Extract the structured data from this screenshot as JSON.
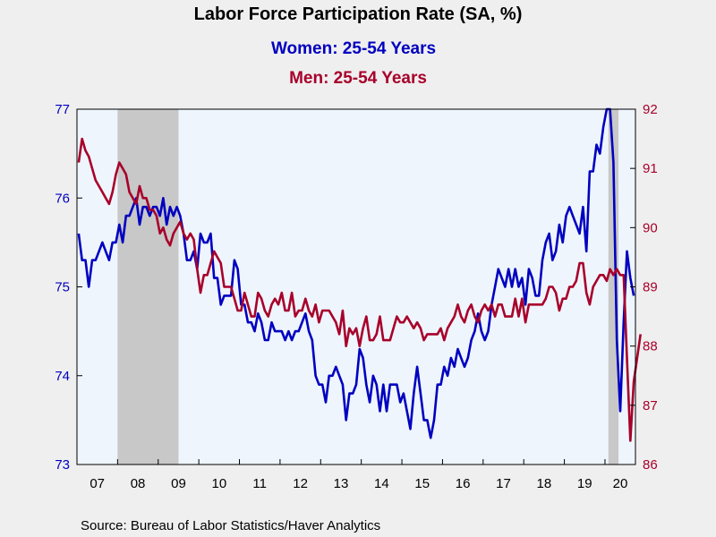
{
  "chart_data": {
    "type": "line",
    "title": "Labor Force Participation Rate (SA, %)",
    "source": "Source:  Bureau of Labor Statistics/Haver Analytics",
    "x_start": "2007-01",
    "x_end": "2020-09",
    "x_tick_labels": [
      "07",
      "08",
      "09",
      "10",
      "11",
      "12",
      "13",
      "14",
      "15",
      "16",
      "17",
      "18",
      "19",
      "20"
    ],
    "recessions": [
      [
        "2008-01",
        "2009-06"
      ],
      [
        "2020-02",
        "2020-04"
      ]
    ],
    "left_axis": {
      "min": 73,
      "max": 77,
      "ticks": [
        "73",
        "74",
        "75",
        "76",
        "77"
      ],
      "color": "#0000c0"
    },
    "right_axis": {
      "min": 86,
      "max": 92,
      "ticks": [
        "86",
        "87",
        "88",
        "89",
        "90",
        "91",
        "92"
      ],
      "color": "#a8002a"
    },
    "colors": {
      "plot_bg": "#eef5fd",
      "recession": "#c8c8c8"
    },
    "series": [
      {
        "name": "Women: 25-54 Years",
        "axis": "left",
        "color": "#0000c0",
        "values": [
          75.6,
          75.3,
          75.3,
          75.0,
          75.3,
          75.3,
          75.4,
          75.5,
          75.4,
          75.3,
          75.5,
          75.5,
          75.7,
          75.5,
          75.8,
          75.8,
          75.9,
          76.0,
          75.7,
          75.9,
          75.9,
          75.8,
          75.9,
          75.9,
          75.8,
          76.0,
          75.7,
          75.9,
          75.8,
          75.9,
          75.8,
          75.6,
          75.3,
          75.3,
          75.4,
          75.2,
          75.6,
          75.5,
          75.5,
          75.6,
          75.1,
          75.1,
          74.8,
          74.9,
          74.9,
          74.9,
          75.3,
          75.2,
          74.8,
          74.8,
          74.6,
          74.6,
          74.5,
          74.7,
          74.6,
          74.4,
          74.4,
          74.6,
          74.5,
          74.5,
          74.5,
          74.4,
          74.5,
          74.4,
          74.5,
          74.5,
          74.6,
          74.7,
          74.5,
          74.4,
          74.0,
          73.9,
          73.9,
          73.7,
          74.0,
          74.0,
          74.1,
          74.0,
          73.9,
          73.5,
          73.8,
          73.8,
          73.9,
          74.3,
          74.2,
          73.9,
          73.7,
          74.0,
          73.9,
          73.6,
          73.9,
          73.6,
          73.9,
          73.9,
          73.9,
          73.7,
          73.8,
          73.6,
          73.4,
          73.8,
          74.1,
          73.8,
          73.5,
          73.5,
          73.3,
          73.5,
          73.9,
          73.9,
          74.1,
          74.0,
          74.2,
          74.1,
          74.3,
          74.2,
          74.1,
          74.2,
          74.4,
          74.5,
          74.7,
          74.5,
          74.4,
          74.5,
          74.8,
          75.0,
          75.2,
          75.1,
          75.0,
          75.2,
          75.0,
          75.2,
          75.0,
          75.1,
          74.8,
          75.2,
          75.1,
          74.9,
          74.9,
          75.3,
          75.5,
          75.6,
          75.3,
          75.4,
          75.7,
          75.5,
          75.8,
          75.9,
          75.8,
          75.7,
          75.6,
          75.9,
          75.4,
          76.3,
          76.3,
          76.6,
          76.5,
          76.8,
          77.0,
          77.0,
          76.4,
          74.4,
          73.6,
          74.6,
          75.4,
          75.1,
          74.9
        ]
      },
      {
        "name": "Men: 25-54 Years",
        "axis": "right",
        "color": "#a8002a",
        "values": [
          91.1,
          91.5,
          91.3,
          91.2,
          91.0,
          90.8,
          90.7,
          90.6,
          90.5,
          90.4,
          90.6,
          90.9,
          91.1,
          91.0,
          90.9,
          90.6,
          90.5,
          90.4,
          90.7,
          90.5,
          90.5,
          90.3,
          90.3,
          90.2,
          89.9,
          90.0,
          89.8,
          89.7,
          89.9,
          90.0,
          90.1,
          89.9,
          89.8,
          89.9,
          89.8,
          89.3,
          88.9,
          89.2,
          89.2,
          89.4,
          89.6,
          89.5,
          89.4,
          89.0,
          89.0,
          89.0,
          88.8,
          88.6,
          88.6,
          88.9,
          88.7,
          88.5,
          88.5,
          88.9,
          88.8,
          88.6,
          88.5,
          88.7,
          88.8,
          88.7,
          88.9,
          88.6,
          88.6,
          88.9,
          88.5,
          88.6,
          88.6,
          88.8,
          88.6,
          88.5,
          88.7,
          88.4,
          88.6,
          88.6,
          88.6,
          88.5,
          88.4,
          88.2,
          88.6,
          88.0,
          88.3,
          88.2,
          88.3,
          88.0,
          88.3,
          88.5,
          88.1,
          88.1,
          88.2,
          88.5,
          88.1,
          88.1,
          88.1,
          88.3,
          88.5,
          88.4,
          88.4,
          88.5,
          88.4,
          88.3,
          88.4,
          88.3,
          88.1,
          88.2,
          88.2,
          88.2,
          88.2,
          88.3,
          88.1,
          88.3,
          88.4,
          88.5,
          88.7,
          88.5,
          88.4,
          88.6,
          88.7,
          88.5,
          88.4,
          88.6,
          88.7,
          88.6,
          88.7,
          88.5,
          88.7,
          88.7,
          88.5,
          88.5,
          88.5,
          88.8,
          88.5,
          88.8,
          88.4,
          88.7,
          88.7,
          88.7,
          88.7,
          88.7,
          88.8,
          89.0,
          89.0,
          88.9,
          88.6,
          88.8,
          88.8,
          89.0,
          89.0,
          89.1,
          89.4,
          89.4,
          88.9,
          88.7,
          89.0,
          89.1,
          89.2,
          89.2,
          89.1,
          89.3,
          89.2,
          89.3,
          89.2,
          89.2,
          87.8,
          86.4,
          87.4,
          87.8,
          88.2
        ]
      }
    ]
  }
}
